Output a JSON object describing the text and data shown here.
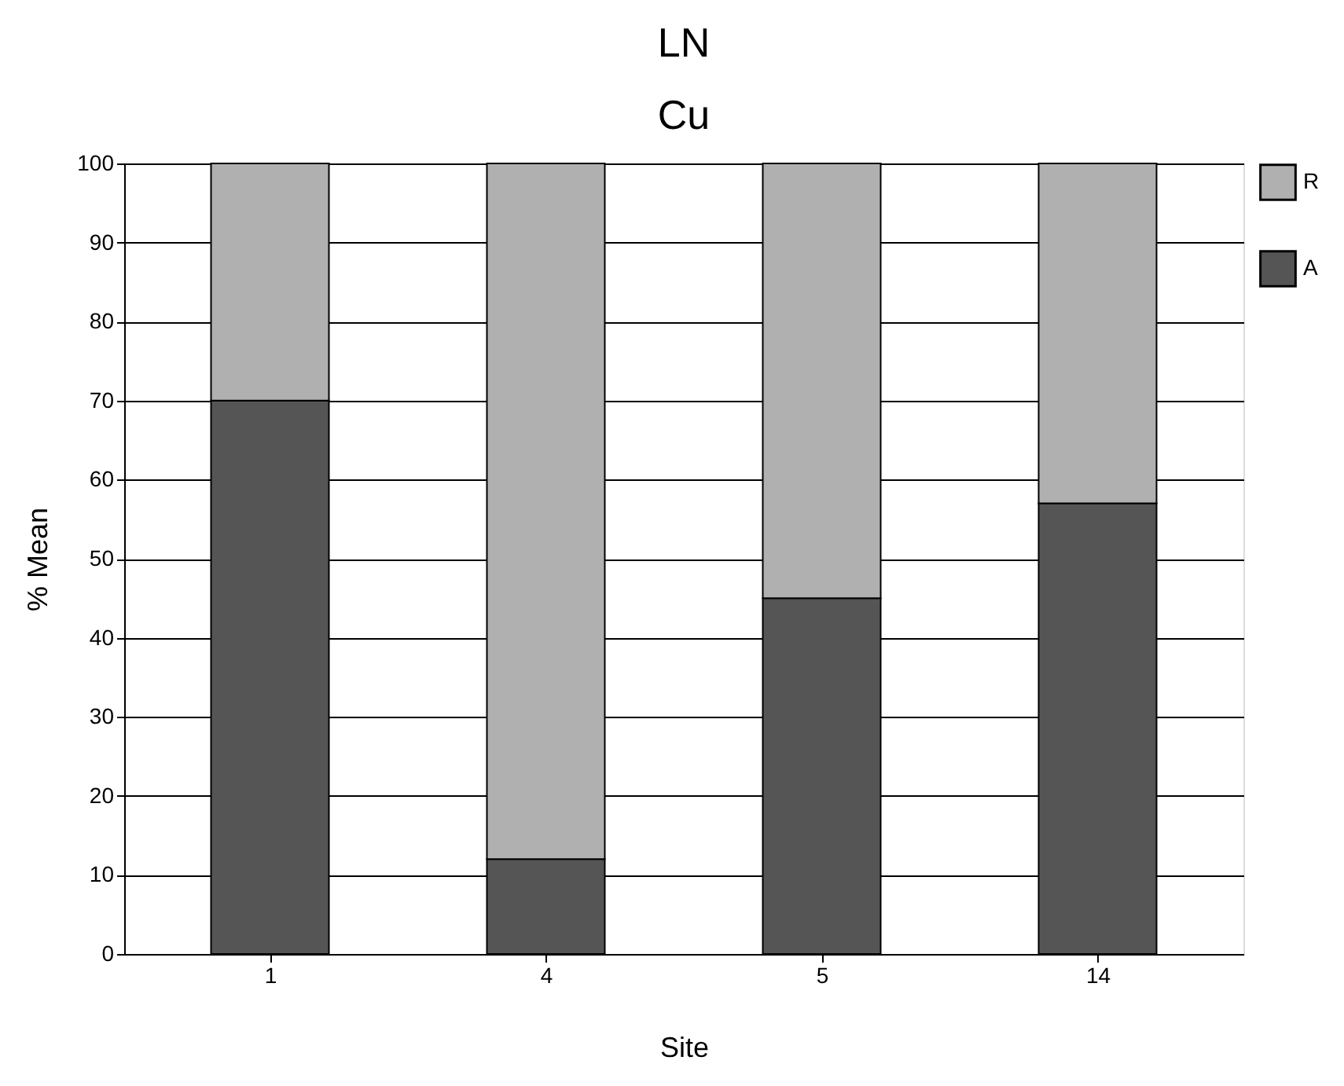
{
  "chart_data": {
    "type": "bar",
    "title": "LN",
    "subtitle": "Cu",
    "xlabel": "Site",
    "ylabel": "% Mean",
    "categories": [
      "1",
      "4",
      "5",
      "14"
    ],
    "series": [
      {
        "name": "A",
        "color": "#555555",
        "values": [
          70,
          12,
          45,
          57
        ]
      },
      {
        "name": "R",
        "color": "#b0b0b0",
        "values": [
          30,
          88,
          55,
          43
        ]
      }
    ],
    "stacked": true,
    "ylim": [
      0,
      100
    ],
    "yticks": [
      0,
      10,
      20,
      30,
      40,
      50,
      60,
      70,
      80,
      90,
      100
    ],
    "grid": "y",
    "legend": "right"
  }
}
